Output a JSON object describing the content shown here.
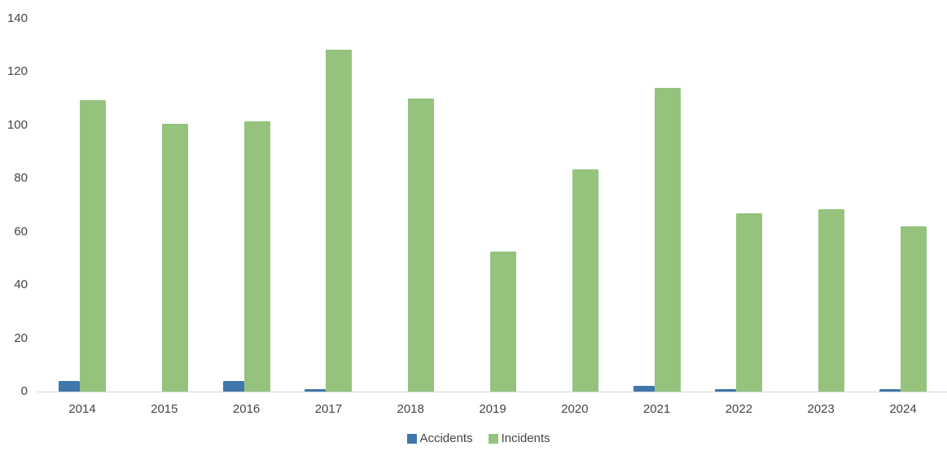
{
  "chart_data": {
    "type": "bar",
    "title": "",
    "categories": [
      "2014",
      "2015",
      "2016",
      "2017",
      "2018",
      "2019",
      "2020",
      "2021",
      "2022",
      "2023",
      "2024"
    ],
    "series": [
      {
        "name": "Accidents",
        "color": "#3F76AC",
        "values": [
          4,
          0,
          4,
          1,
          0,
          0,
          0,
          2,
          1,
          0,
          1
        ]
      },
      {
        "name": "Incidents",
        "color": "#95C37E",
        "values": [
          109.5,
          100.5,
          101.5,
          128.5,
          110,
          52.5,
          83.5,
          114,
          67,
          68.5,
          62
        ]
      }
    ],
    "ylabel": "",
    "xlabel": "",
    "ylim": [
      0,
      140
    ],
    "yticks": [
      0,
      20,
      40,
      60,
      80,
      100,
      120,
      140
    ],
    "grid": false,
    "legend_position": "bottom-center",
    "colors": {
      "axis_line": "#D6D6D6",
      "tick_label": "#444444",
      "background": "#FFFFFF"
    }
  }
}
